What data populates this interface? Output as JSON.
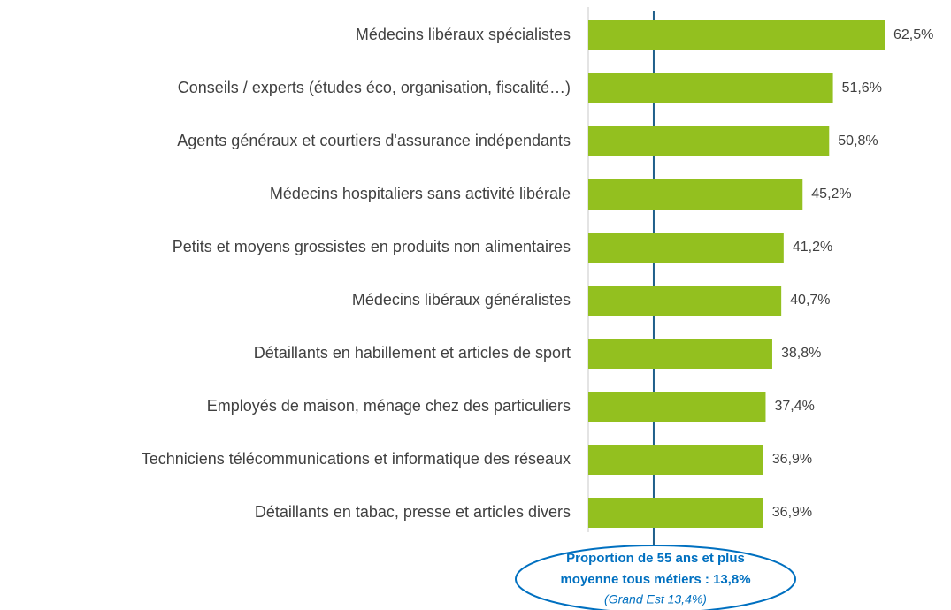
{
  "chart_data": {
    "type": "barh",
    "categories": [
      "Médecins libéraux spécialistes",
      "Conseils / experts (études éco, organisation, fiscalité…)",
      "Agents généraux et courtiers d'assurance indépendants",
      "Médecins hospitaliers sans activité libérale",
      "Petits et moyens grossistes en produits non alimentaires",
      "Médecins libéraux généralistes",
      "Détaillants en habillement et articles de sport",
      "Employés de maison, ménage chez des particuliers",
      "Techniciens  télécommunications et informatique des réseaux",
      "Détaillants en tabac, presse et articles divers"
    ],
    "values": [
      62.5,
      51.6,
      50.8,
      45.2,
      41.2,
      40.7,
      38.8,
      37.4,
      36.9,
      36.9
    ],
    "value_labels": [
      "62,5%",
      "51,6%",
      "50,8%",
      "45,2%",
      "41,2%",
      "40,7%",
      "38,8%",
      "37,4%",
      "36,9%",
      "36,9%"
    ],
    "color": "#93c01f",
    "reference_line": {
      "value": 13.8,
      "color": "#1f5f8b"
    },
    "annotation": [
      "Proportion de 55 ans et plus",
      "moyenne tous métiers : 13,8%",
      "(Grand Est 13,4%)"
    ]
  }
}
